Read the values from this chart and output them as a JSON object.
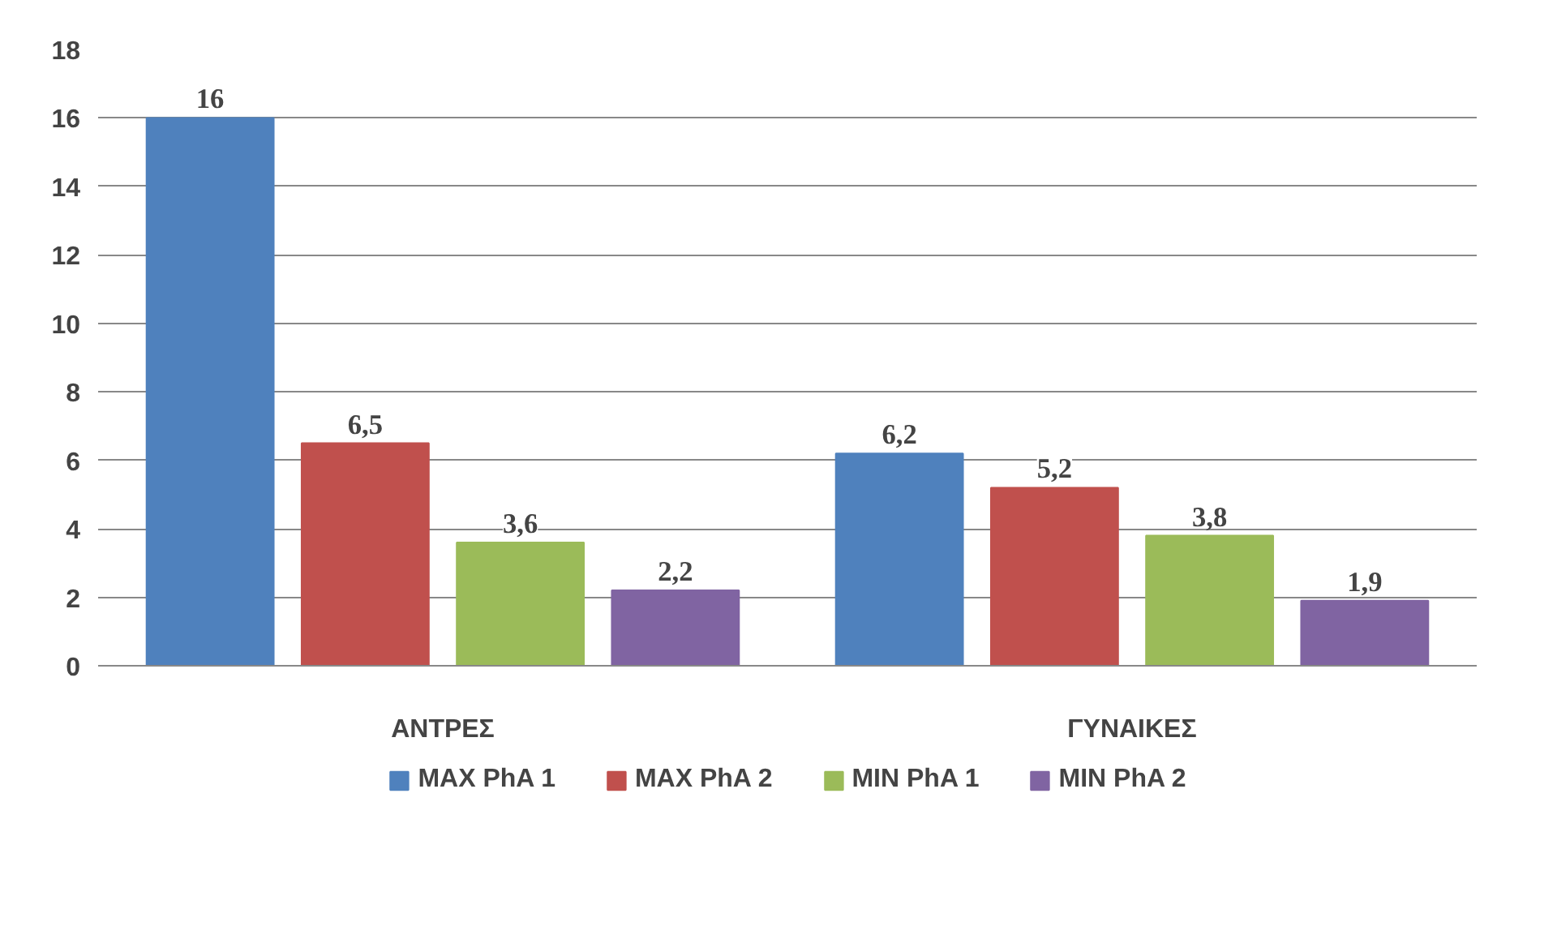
{
  "chart_data": {
    "type": "bar",
    "categories": [
      "ΑΝΤΡΕΣ",
      "ΓΥΝΑΙΚΕΣ"
    ],
    "series": [
      {
        "name": "MAX PhA 1",
        "color": "#4f81bd",
        "values": [
          16,
          6.2
        ],
        "value_labels": [
          "16",
          "6,2"
        ]
      },
      {
        "name": "MAX PhA 2",
        "color": "#c0504d",
        "values": [
          6.5,
          5.2
        ],
        "value_labels": [
          "6,5",
          "5,2"
        ]
      },
      {
        "name": "MIN PhA 1",
        "color": "#9bbb59",
        "values": [
          3.6,
          3.8
        ],
        "value_labels": [
          "3,6",
          "3,8"
        ]
      },
      {
        "name": "MIN PhA 2",
        "color": "#8064a2",
        "values": [
          2.2,
          1.9
        ],
        "value_labels": [
          "2,2",
          "1,9"
        ]
      }
    ],
    "ylim": [
      0,
      18
    ],
    "yticks": [
      0,
      2,
      4,
      6,
      8,
      10,
      12,
      14,
      16,
      18
    ],
    "grid": "y",
    "legend": "bottom"
  }
}
